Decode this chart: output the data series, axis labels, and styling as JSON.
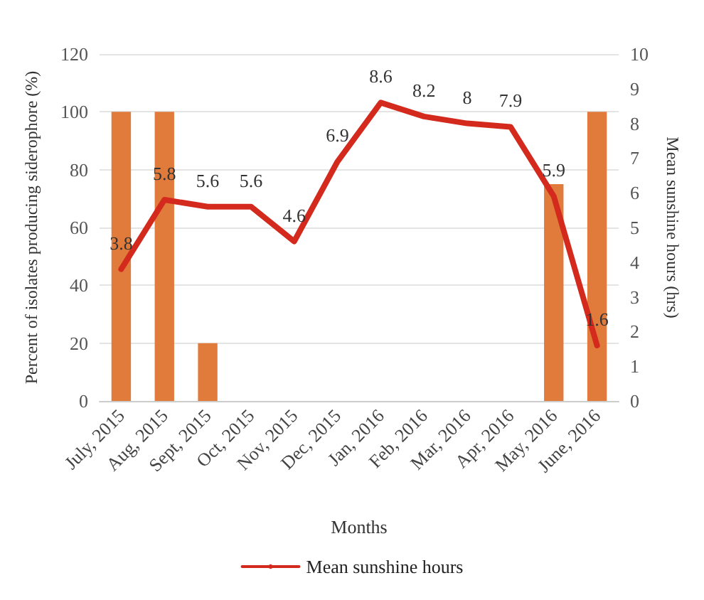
{
  "chart_data": {
    "type": "bar",
    "xlabel": "Months",
    "ylabel": "Percent of isolates producing siderophore (%)",
    "y2label": "Mean sunshine hours (hrs)",
    "categories": [
      "July, 2015",
      "Aug, 2015",
      "Sept, 2015",
      "Oct, 2015",
      "Nov, 2015",
      "Dec, 2015",
      "Jan, 2016",
      "Feb, 2016",
      "Mar, 2016",
      "Apr, 2016",
      "May, 2016",
      "June, 2016"
    ],
    "series": [
      {
        "color": "#e07b3c",
        "values": [
          100,
          100,
          20,
          0,
          0,
          0,
          0,
          0,
          0,
          0,
          75,
          100
        ]
      },
      {
        "type": "line",
        "name": "Mean sunshine hours",
        "axis": "y2",
        "color": "#d42a1e",
        "values": [
          3.8,
          5.8,
          5.6,
          5.6,
          4.6,
          6.9,
          8.6,
          8.2,
          8,
          7.9,
          5.9,
          1.6
        ],
        "value_labels": [
          "3.8",
          "5.8",
          "5.6",
          "5.6",
          "4.6",
          "6.9",
          "8.6",
          "8.2",
          "8",
          "7.9",
          "5.9",
          "1.6"
        ]
      }
    ],
    "ylim": [
      0,
      120
    ],
    "yticks": [
      0,
      20,
      40,
      60,
      80,
      100,
      120
    ],
    "y2lim": [
      0,
      10
    ],
    "y2ticks": [
      0,
      1,
      2,
      3,
      4,
      5,
      6,
      7,
      8,
      9,
      10
    ],
    "grid": "y",
    "legend": "bottom",
    "marker": "none",
    "line_style": "solid"
  }
}
